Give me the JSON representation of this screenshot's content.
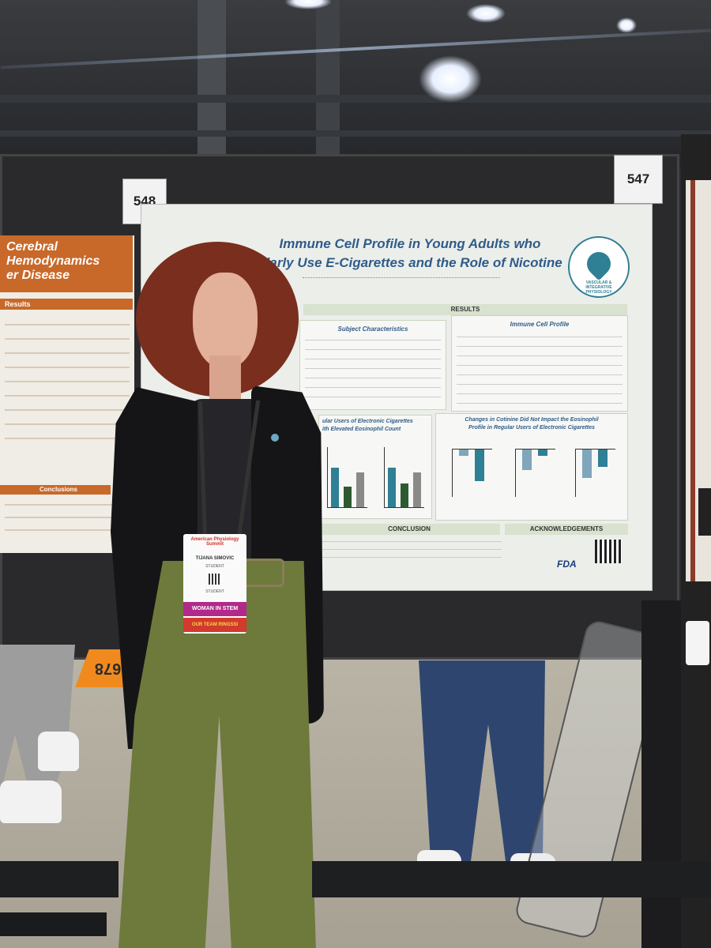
{
  "booths": {
    "left_number": "548",
    "right_number": "547"
  },
  "poster": {
    "title_line1": "Immune Cell Profile in Young Adults who",
    "title_line2": "ularly Use E-Cigarettes and the Role of Nicotine",
    "logo_text": "VASCULAR & INTEGRATIVE PHYSIOLOGY",
    "results_header": "RESULTS",
    "subject_characteristics_title": "Subject Characteristics",
    "immune_profile_title": "Immune Cell Profile",
    "left_chart_title_1": "ular Users of Electronic Cigarettes",
    "left_chart_title_2": "ith Elevated Eosinophil Count",
    "right_chart_title_1": "Changes in Cotinine Did Not Impact the Eosinophil",
    "right_chart_title_2": "Profile in Regular Users of Electronic Cigarettes",
    "conclusion_header": "CONCLUSION",
    "acknowledgements_header": "ACKNOWLEDGEMENTS",
    "fda_text": "FDA"
  },
  "left_poster": {
    "title_1": "Cerebral Hemodynamics",
    "title_2": "er Disease",
    "results_header": "Results",
    "conclusions_header": "Conclusions"
  },
  "badge": {
    "name": "TIJANA SIMOVIC",
    "role": "STUDENT",
    "org": "American Physiology Summit",
    "ribbon_1": "WOMAN IN STEM",
    "ribbon_2": "OUR TEAM RINGSSI"
  },
  "floor_sign": "678",
  "colors": {
    "poster_title": "#2f5c8a",
    "bar_teal": "#2f7f95",
    "bar_green": "#2e5a32",
    "bar_gray": "#8a8a8a",
    "bar_blue": "#7fa6bb",
    "pants": "#6d7a3b",
    "hair": "#7a2e1e"
  }
}
